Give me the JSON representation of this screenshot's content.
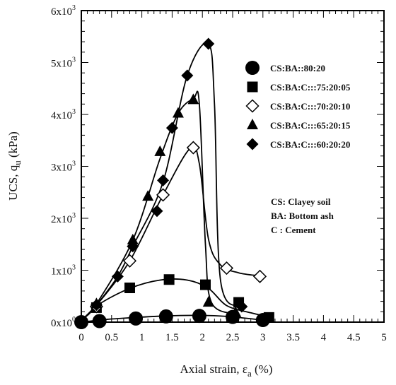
{
  "chart_data": {
    "type": "scatter",
    "xlabel": {
      "main": "Axial strain, ",
      "greek": "ε",
      "sub": "a",
      "unit": " (%)"
    },
    "ylabel": {
      "main": "UCS, q",
      "sub": "u",
      "unit": " (kPa)"
    },
    "xlim": [
      0,
      5
    ],
    "ylim": [
      0,
      6000
    ],
    "x_ticks": [
      0,
      0.5,
      1,
      1.5,
      2,
      2.5,
      3,
      3.5,
      4,
      4.5,
      5
    ],
    "x_tick_labels": [
      "0",
      "0.5",
      "1",
      "1.5",
      "2",
      "2.5",
      "3",
      "3.5",
      "4",
      "4.5",
      "5"
    ],
    "y_ticks": [
      {
        "value": 0,
        "mantissa": "0x10",
        "exp": "0"
      },
      {
        "value": 1000,
        "mantissa": "1x10",
        "exp": "3"
      },
      {
        "value": 2000,
        "mantissa": "2x10",
        "exp": "3"
      },
      {
        "value": 3000,
        "mantissa": "3x10",
        "exp": "3"
      },
      {
        "value": 4000,
        "mantissa": "4x10",
        "exp": "3"
      },
      {
        "value": 5000,
        "mantissa": "5x10",
        "exp": "3"
      },
      {
        "value": 6000,
        "mantissa": "6x10",
        "exp": "3"
      }
    ],
    "series": [
      {
        "name": "CS:BA::80:20",
        "marker": "circle-filled",
        "points": [
          [
            0,
            0
          ],
          [
            0.3,
            20
          ],
          [
            0.9,
            70
          ],
          [
            1.4,
            110
          ],
          [
            1.95,
            120
          ],
          [
            2.5,
            100
          ],
          [
            3,
            40
          ]
        ],
        "curve": [
          [
            0,
            0
          ],
          [
            0.4,
            50
          ],
          [
            0.9,
            90
          ],
          [
            1.4,
            120
          ],
          [
            1.95,
            130
          ],
          [
            2.4,
            110
          ],
          [
            3,
            40
          ]
        ]
      },
      {
        "name": "CS:BA:C:::75:20:05",
        "marker": "square-filled",
        "points": [
          [
            0.25,
            280
          ],
          [
            0.8,
            660
          ],
          [
            1.45,
            820
          ],
          [
            2.05,
            720
          ],
          [
            2.6,
            380
          ],
          [
            3.1,
            90
          ]
        ],
        "curve": [
          [
            0.05,
            80
          ],
          [
            0.3,
            350
          ],
          [
            0.8,
            650
          ],
          [
            1.3,
            810
          ],
          [
            1.75,
            810
          ],
          [
            2.1,
            650
          ],
          [
            2.4,
            320
          ],
          [
            2.8,
            180
          ],
          [
            3.1,
            100
          ]
        ]
      },
      {
        "name": "CS:BA:C:::70:20:10",
        "marker": "diamond-open",
        "points": [
          [
            0.25,
            300
          ],
          [
            0.8,
            1180
          ],
          [
            1.35,
            2450
          ],
          [
            1.85,
            3360
          ],
          [
            2.4,
            1040
          ],
          [
            2.95,
            880
          ]
        ],
        "curve": [
          [
            0.05,
            80
          ],
          [
            0.25,
            320
          ],
          [
            0.8,
            1180
          ],
          [
            1.35,
            2450
          ],
          [
            1.8,
            3350
          ],
          [
            1.95,
            3050
          ],
          [
            2.1,
            1600
          ],
          [
            2.3,
            1100
          ],
          [
            2.6,
            950
          ],
          [
            2.95,
            890
          ]
        ]
      },
      {
        "name": "CS:BA:C:::65:20:15",
        "marker": "triangle-filled",
        "points": [
          [
            0.25,
            350
          ],
          [
            0.85,
            1580
          ],
          [
            1.1,
            2420
          ],
          [
            1.3,
            3280
          ],
          [
            1.6,
            4020
          ],
          [
            1.85,
            4280
          ],
          [
            2.1,
            380
          ],
          [
            2.55,
            180
          ]
        ],
        "curve": [
          [
            0.05,
            90
          ],
          [
            0.25,
            350
          ],
          [
            0.85,
            1580
          ],
          [
            1.3,
            3150
          ],
          [
            1.6,
            4020
          ],
          [
            1.85,
            4300
          ],
          [
            1.95,
            4200
          ],
          [
            2.05,
            1500
          ],
          [
            2.15,
            380
          ],
          [
            2.55,
            150
          ]
        ]
      },
      {
        "name": "CS:BA:C:::60:20:20",
        "marker": "diamond-filled",
        "points": [
          [
            0.25,
            330
          ],
          [
            0.6,
            880
          ],
          [
            0.85,
            1460
          ],
          [
            1.25,
            2140
          ],
          [
            1.35,
            2730
          ],
          [
            1.5,
            3740
          ],
          [
            1.75,
            4750
          ],
          [
            2.1,
            5360
          ],
          [
            2.65,
            300
          ]
        ],
        "curve": [
          [
            0.05,
            90
          ],
          [
            0.25,
            330
          ],
          [
            0.6,
            880
          ],
          [
            0.85,
            1460
          ],
          [
            1.35,
            2700
          ],
          [
            1.75,
            4750
          ],
          [
            2.1,
            5360
          ],
          [
            2.2,
            4200
          ],
          [
            2.3,
            800
          ],
          [
            2.65,
            300
          ]
        ]
      }
    ],
    "legend_position": "right",
    "annotations": [
      "CS: Clayey soil",
      "BA: Bottom ash",
      "C  : Cement"
    ],
    "grid": false
  }
}
